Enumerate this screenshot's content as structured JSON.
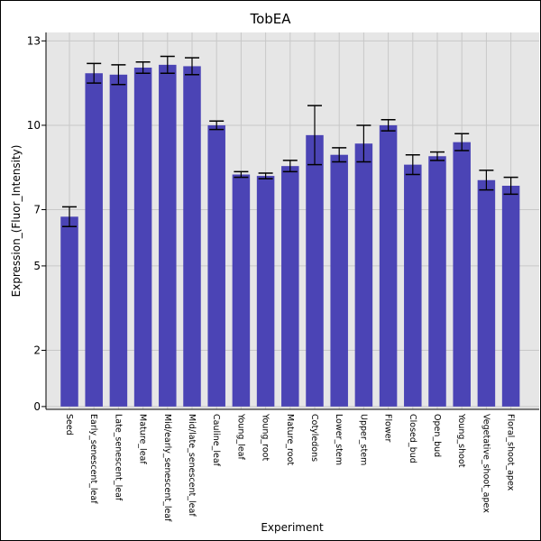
{
  "chart_data": {
    "type": "bar",
    "title": "TobEA",
    "xlabel": "Experiment",
    "ylabel": "Expression_(Fluor_Intensity)",
    "ylim": [
      -0.1,
      13.3
    ],
    "yticks": [
      0,
      2,
      5,
      7,
      10,
      13
    ],
    "grid": true,
    "bar_color": "#4b44b5",
    "plot_bg": "#e6e6e6",
    "categories": [
      "Seed",
      "Early_senescent_leaf",
      "Late_senescent_leaf",
      "Mature_leaf",
      "Mid/early_senescent_leaf",
      "Mid/late_senescent_leaf",
      "Cauline_leaf",
      "Young_leaf",
      "Young_root",
      "Mature_root",
      "Cotyledons",
      "Lower_stem",
      "Upper_stem",
      "Flower",
      "Closed_bud",
      "Open_bud",
      "Young_shoot",
      "Vegetative_shoot_apex",
      "Floral_shoot_apex"
    ],
    "values": [
      6.75,
      11.85,
      11.8,
      12.05,
      12.15,
      12.1,
      10.0,
      8.25,
      8.2,
      8.55,
      9.65,
      8.95,
      9.35,
      10.0,
      8.6,
      8.9,
      9.4,
      8.05,
      7.85
    ],
    "errors": [
      0.35,
      0.35,
      0.35,
      0.2,
      0.3,
      0.3,
      0.15,
      0.1,
      0.1,
      0.2,
      1.05,
      0.25,
      0.65,
      0.2,
      0.35,
      0.15,
      0.3,
      0.35,
      0.3
    ]
  }
}
